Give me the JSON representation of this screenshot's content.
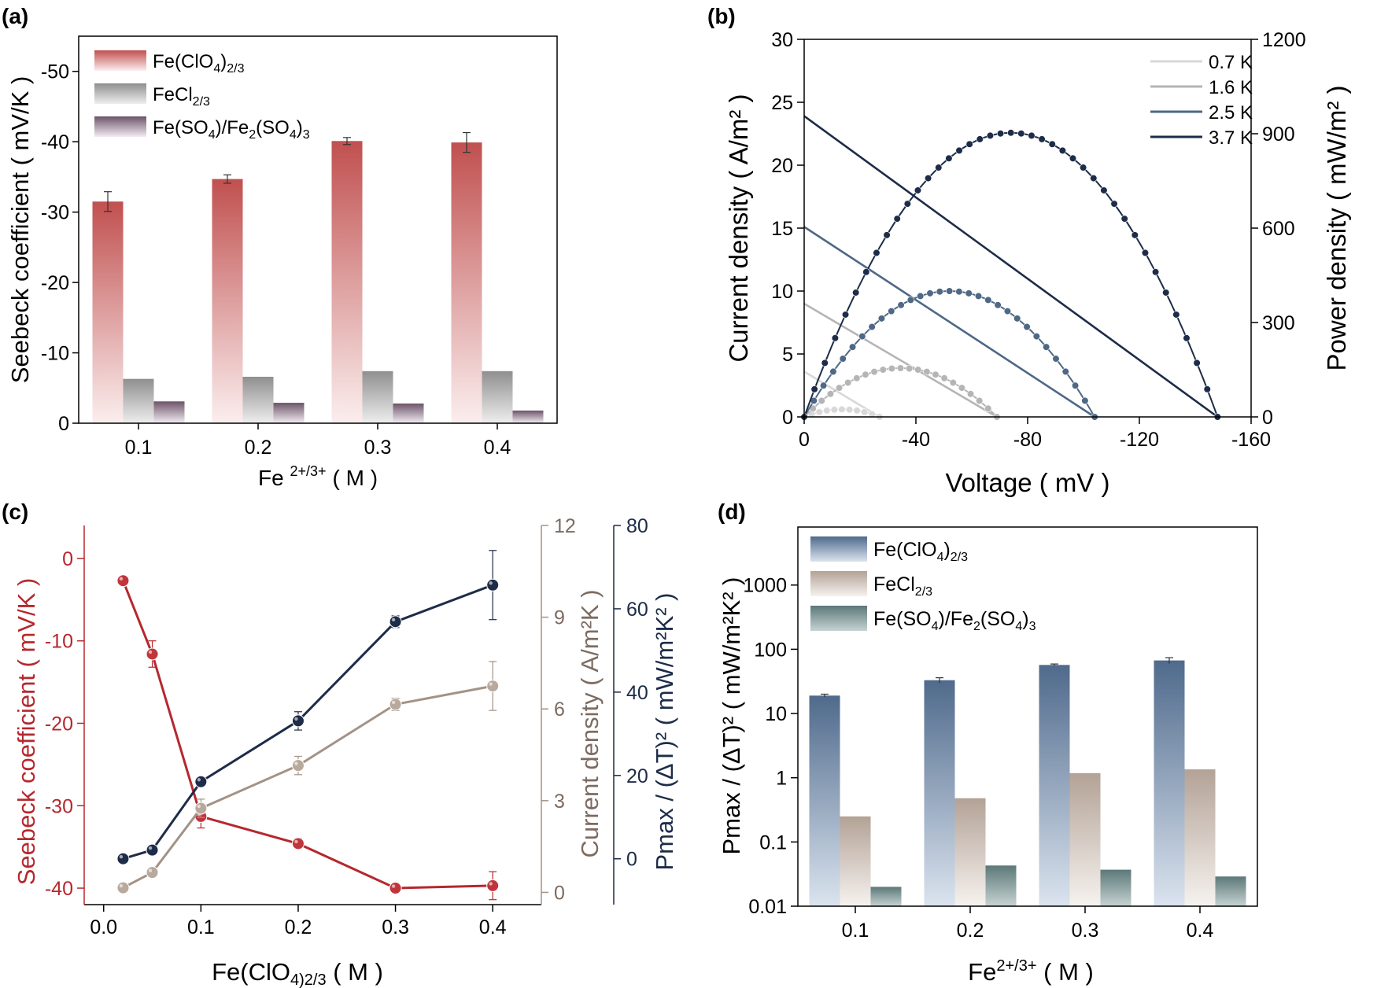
{
  "colors": {
    "clo4_bar": "#c0504f",
    "cl_bar": "#8f8f8f",
    "so4_bar": "#6d5469",
    "d_clo4": "#4f6a8c",
    "d_cl": "#b3a296",
    "d_so4": "#5c7878",
    "seebeck_line": "#b5282e",
    "current_line": "#a39286",
    "power_line": "#1d2c48",
    "k07": "#d8d8d8",
    "k16": "#b5b5b5",
    "k25": "#4e6885",
    "k37": "#1d2c48"
  },
  "chart_data": [
    {
      "panel_label": "(a)",
      "type": "bar",
      "categories": [
        "0.1",
        "0.2",
        "0.3",
        "0.4"
      ],
      "series": [
        {
          "name": "Fe(ClO4)2/3",
          "values": [
            -31.5,
            -34.7,
            -40.1,
            -39.9
          ],
          "errors": [
            1.4,
            0.6,
            0.5,
            1.4
          ]
        },
        {
          "name": "FeCl2/3",
          "values": [
            -6.3,
            -6.6,
            -7.4,
            -7.4
          ]
        },
        {
          "name": "Fe(SO4)/Fe2(SO4)3",
          "values": [
            -3.1,
            -2.9,
            -2.8,
            -1.8
          ]
        }
      ],
      "ylim": [
        0,
        -55
      ],
      "yticks": [
        "-50",
        "-40",
        "-30",
        "-20",
        "-10",
        "0"
      ],
      "xlabel_base": "Fe ",
      "xlabel_sup": "2+/3+",
      "xlabel_tail": "( M )",
      "ylabel": "Seebeck coefficient ( mV/K )",
      "legend_position": "top-left"
    },
    {
      "panel_label": "(b)",
      "type": "line",
      "xlim": [
        0,
        -160
      ],
      "xticks": [
        "0",
        "-40",
        "-80",
        "-120",
        "-160"
      ],
      "ylim_left": [
        0,
        30
      ],
      "yticks_left": [
        "0",
        "5",
        "10",
        "15",
        "20",
        "25",
        "30"
      ],
      "ylim_right": [
        0,
        1200
      ],
      "yticks_right": [
        "0",
        "300",
        "600",
        "900",
        "1200"
      ],
      "xlabel": "Voltage ( mV )",
      "ylabel_left": "Current density ( A/m² )",
      "ylabel_right": "Power density ( mW/m² )",
      "series": [
        {
          "name": "0.7 K",
          "voc": -27,
          "jsc": 3.6,
          "pmax": 24
        },
        {
          "name": "1.6 K",
          "voc": -69,
          "jsc": 9.0,
          "pmax": 155
        },
        {
          "name": "2.5 K",
          "voc": -104,
          "jsc": 15.1,
          "pmax": 400
        },
        {
          "name": "3.7 K",
          "voc": -148,
          "jsc": 23.9,
          "pmax": 903
        }
      ],
      "legend_position": "top-right"
    },
    {
      "panel_label": "(c)",
      "type": "line",
      "x": [
        0.02,
        0.05,
        0.1,
        0.2,
        0.3,
        0.4
      ],
      "xticks": [
        "0.0",
        "0.1",
        "0.2",
        "0.3",
        "0.4"
      ],
      "xlim": [
        -0.02,
        0.45
      ],
      "xlabel": "Fe(ClO4)2/3 ( M )",
      "series": [
        {
          "name": "Seebeck coefficient",
          "axis": "left",
          "values": [
            -2.7,
            -11.6,
            -31.3,
            -34.6,
            -40.0,
            -39.7
          ],
          "errors": [
            0,
            1.6,
            1.4,
            0.6,
            0.5,
            1.7
          ]
        },
        {
          "name": "Current density",
          "axis": "right1",
          "values": [
            0.15,
            0.65,
            2.75,
            4.15,
            6.15,
            6.75
          ],
          "errors": [
            0,
            0,
            0.3,
            0.3,
            0.2,
            0.8
          ]
        },
        {
          "name": "Pmax/(ΔT)2",
          "axis": "right2",
          "values": [
            0,
            2.1,
            18.5,
            33.1,
            56.9,
            65.7
          ],
          "errors": [
            0,
            0,
            0,
            2.2,
            1.4,
            8.3
          ]
        }
      ],
      "ylim_left": [
        -42,
        4
      ],
      "yticks_left": [
        "0",
        "-10",
        "-20",
        "-30",
        "-40"
      ],
      "ylabel_left": "Seebeck coefficient ( mV/K )",
      "ylim_right1": [
        -0.4,
        12
      ],
      "yticks_right1": [
        "0",
        "3",
        "6",
        "9",
        "12"
      ],
      "ylabel_right1": "Current density ( A/m²K )",
      "ylim_right2": [
        -11,
        80
      ],
      "yticks_right2": [
        "0",
        "20",
        "40",
        "60",
        "80"
      ],
      "ylabel_right2": "Pmax / (ΔT)² ( mW/m²K² )"
    },
    {
      "panel_label": "(d)",
      "type": "bar",
      "log_scale": true,
      "categories": [
        "0.1",
        "0.2",
        "0.3",
        "0.4"
      ],
      "series": [
        {
          "name": "Fe(ClO4)2/3",
          "values": [
            19,
            33,
            57,
            67
          ],
          "errors": [
            1,
            3,
            2,
            7
          ]
        },
        {
          "name": "FeCl2/3",
          "values": [
            0.25,
            0.48,
            1.18,
            1.35
          ]
        },
        {
          "name": "Fe(SO4)/Fe2(SO4)3",
          "values": [
            0.02,
            0.043,
            0.037,
            0.029
          ]
        }
      ],
      "ylim": [
        0.01,
        8000
      ],
      "yticks": [
        "0.01",
        "0.1",
        "1",
        "10",
        "100",
        "1000"
      ],
      "xlabel_base": "Fe",
      "xlabel_sup": "2+/3+",
      "xlabel_tail": " ( M )",
      "ylabel": "Pmax / (ΔT)² ( mW/m²K² )",
      "legend_position": "top-left"
    }
  ]
}
